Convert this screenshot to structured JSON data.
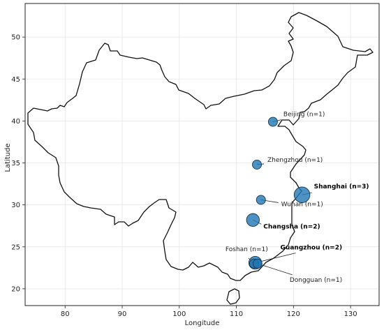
{
  "chart_data": {
    "type": "scatter",
    "title": "",
    "xlabel": "Longitude",
    "ylabel": "Latitude",
    "xlim": [
      73.0,
      135.0
    ],
    "ylim": [
      18.0,
      54.0
    ],
    "x_ticks": [
      "80",
      "90",
      "100",
      "110",
      "120",
      "130"
    ],
    "y_ticks": [
      "20",
      "25",
      "30",
      "35",
      "40",
      "45",
      "50"
    ],
    "grid": true,
    "bubble_color": "#1f77b4",
    "points": [
      {
        "label": "Beijing (n=1)",
        "lon": 116.4,
        "lat": 39.9,
        "n": 1,
        "bold": false
      },
      {
        "label": "Zhengzhou (n=1)",
        "lon": 113.6,
        "lat": 34.8,
        "n": 1,
        "bold": false
      },
      {
        "label": "Shanghai (n=3)",
        "lon": 121.5,
        "lat": 31.2,
        "n": 3,
        "bold": true
      },
      {
        "label": "Wuhan (n=1)",
        "lon": 114.3,
        "lat": 30.6,
        "n": 1,
        "bold": false
      },
      {
        "label": "Changsha (n=2)",
        "lon": 112.9,
        "lat": 28.2,
        "n": 2,
        "bold": true
      },
      {
        "label": "Guangzhou (n=2)",
        "lon": 113.3,
        "lat": 23.1,
        "n": 2,
        "bold": true
      },
      {
        "label": "Foshan (n=1)",
        "lon": 113.1,
        "lat": 23.0,
        "n": 1,
        "bold": false
      },
      {
        "label": "Dongguan (n=1)",
        "lon": 113.7,
        "lat": 23.0,
        "n": 1,
        "bold": false
      }
    ]
  }
}
